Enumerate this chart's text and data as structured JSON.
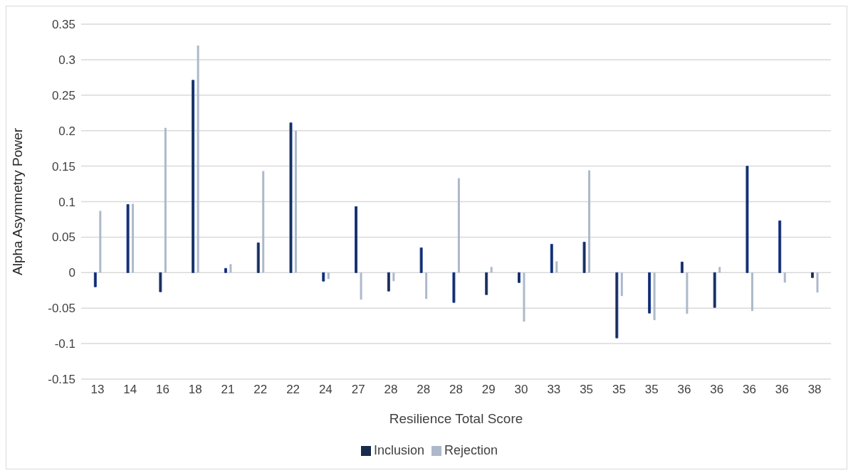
{
  "chart_data": {
    "type": "bar",
    "xlabel": "Resilience Total Score",
    "ylabel": "Alpha Asymmetry Power",
    "categories": [
      "13",
      "14",
      "16",
      "18",
      "21",
      "22",
      "22",
      "24",
      "27",
      "28",
      "28",
      "28",
      "29",
      "30",
      "33",
      "35",
      "35",
      "35",
      "36",
      "36",
      "36",
      "36",
      "38"
    ],
    "series": [
      {
        "name": "Inclusion",
        "color": "#172b4d",
        "values": [
          -0.02,
          0.096,
          -0.027,
          0.271,
          0.006,
          0.042,
          0.211,
          -0.012,
          0.093,
          -0.026,
          0.035,
          -0.042,
          -0.031,
          -0.014,
          0.04,
          0.043,
          -0.092,
          -0.057,
          0.015,
          -0.049,
          0.15,
          0.073,
          -0.007
        ]
      },
      {
        "name": "Rejection",
        "color": "#adb9ca",
        "values": [
          0.087,
          0.097,
          0.204,
          0.32,
          0.012,
          0.143,
          0.2,
          -0.009,
          -0.038,
          -0.012,
          -0.037,
          0.133,
          0.008,
          -0.069,
          0.016,
          0.144,
          -0.033,
          -0.067,
          -0.058,
          0.008,
          -0.054,
          -0.014,
          -0.028
        ]
      }
    ],
    "ylim": [
      -0.15,
      0.35
    ],
    "yticks": [
      -0.15,
      -0.1,
      -0.05,
      0,
      0.05,
      0.1,
      0.15,
      0.2,
      0.25,
      0.3,
      0.35
    ],
    "grid": "y",
    "legend": "bottom"
  }
}
